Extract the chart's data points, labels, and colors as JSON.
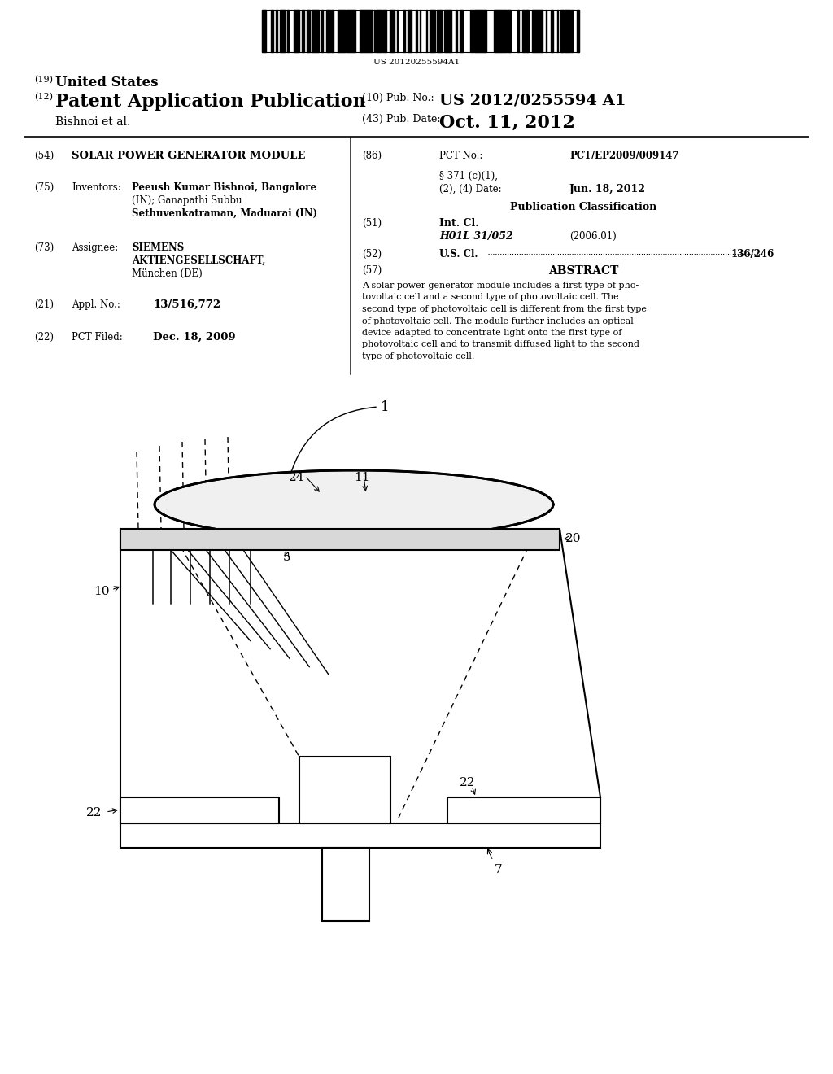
{
  "bg_color": "#ffffff",
  "barcode_text": "US 20120255594A1",
  "title19": "(19) United States",
  "title12": "(12) Patent Application Publication",
  "authors": "Bishnoi et al.",
  "pub_no_label": "(10) Pub. No.:",
  "pub_no": "US 2012/0255594 A1",
  "pub_date_label": "(43) Pub. Date:",
  "pub_date": "Oct. 11, 2012",
  "field54_label": "(54)",
  "field54": "SOLAR POWER GENERATOR MODULE",
  "field86_label": "(86)",
  "field86_name": "PCT No.:",
  "field86_value": "PCT/EP2009/009147",
  "field371": "§ 371 (c)(1),",
  "field371b": "(2), (4) Date:",
  "field371_date": "Jun. 18, 2012",
  "pub_class_title": "Publication Classification",
  "field75_label": "(75)",
  "field75_name": "Inventors:",
  "field75_value_line1": "Peeush Kumar Bishnoi, Bangalore",
  "field75_value_line2": "(IN); Ganapathi Subbu",
  "field75_value_line3": "Sethuvenkatraman, Maduarai (IN)",
  "field51_label": "(51)",
  "field51_name": "Int. Cl.",
  "field51_class": "H01L 31/052",
  "field51_year": "(2006.01)",
  "field73_label": "(73)",
  "field73_name": "Assignee:",
  "field73_value_line1": "SIEMENS",
  "field73_value_line2": "AKTIENGESELLSCHAFT,",
  "field73_value_line3": "München (DE)",
  "field52_label": "(52)",
  "field52_name": "U.S. Cl.",
  "field52_value": "136/246",
  "field57_label": "(57)",
  "field57_name": "ABSTRACT",
  "abstract_lines": [
    "A solar power generator module includes a first type of pho-",
    "tovoltaic cell and a second type of photovoltaic cell. The",
    "second type of photovoltaic cell is different from the first type",
    "of photovoltaic cell. The module further includes an optical",
    "device adapted to concentrate light onto the first type of",
    "photovoltaic cell and to transmit diffused light to the second",
    "type of photovoltaic cell."
  ],
  "field21_label": "(21)",
  "field21_name": "Appl. No.:",
  "field21_value": "13/516,772",
  "field22_label": "(22)",
  "field22_name": "PCT Filed:",
  "field22_value": "Dec. 18, 2009"
}
